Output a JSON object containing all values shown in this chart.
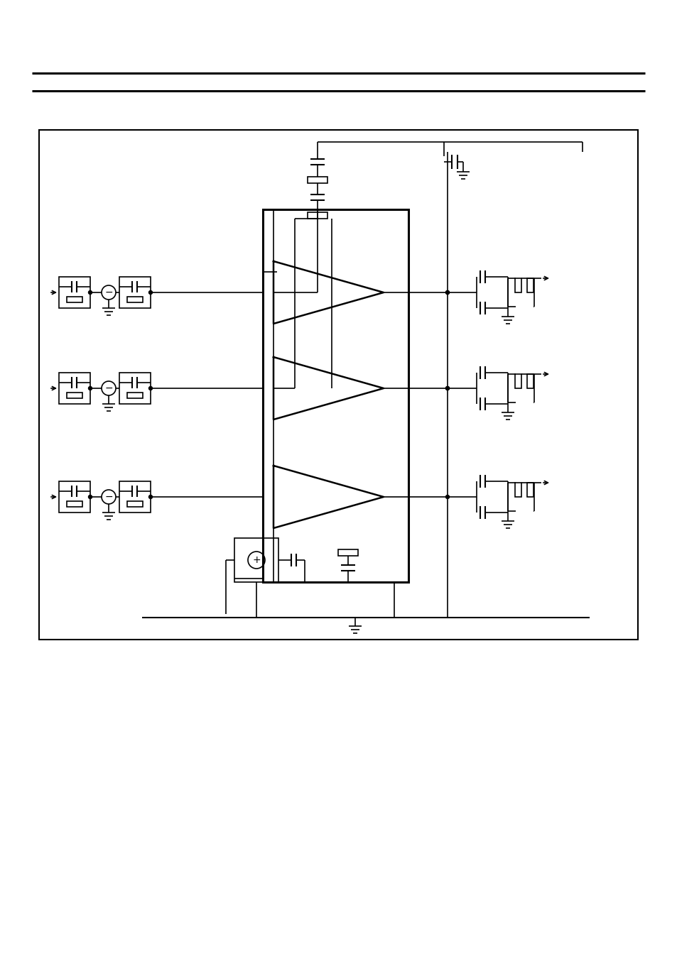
{
  "bg_color": "#ffffff",
  "fig_width": 9.54,
  "fig_height": 13.51,
  "dpi": 100
}
